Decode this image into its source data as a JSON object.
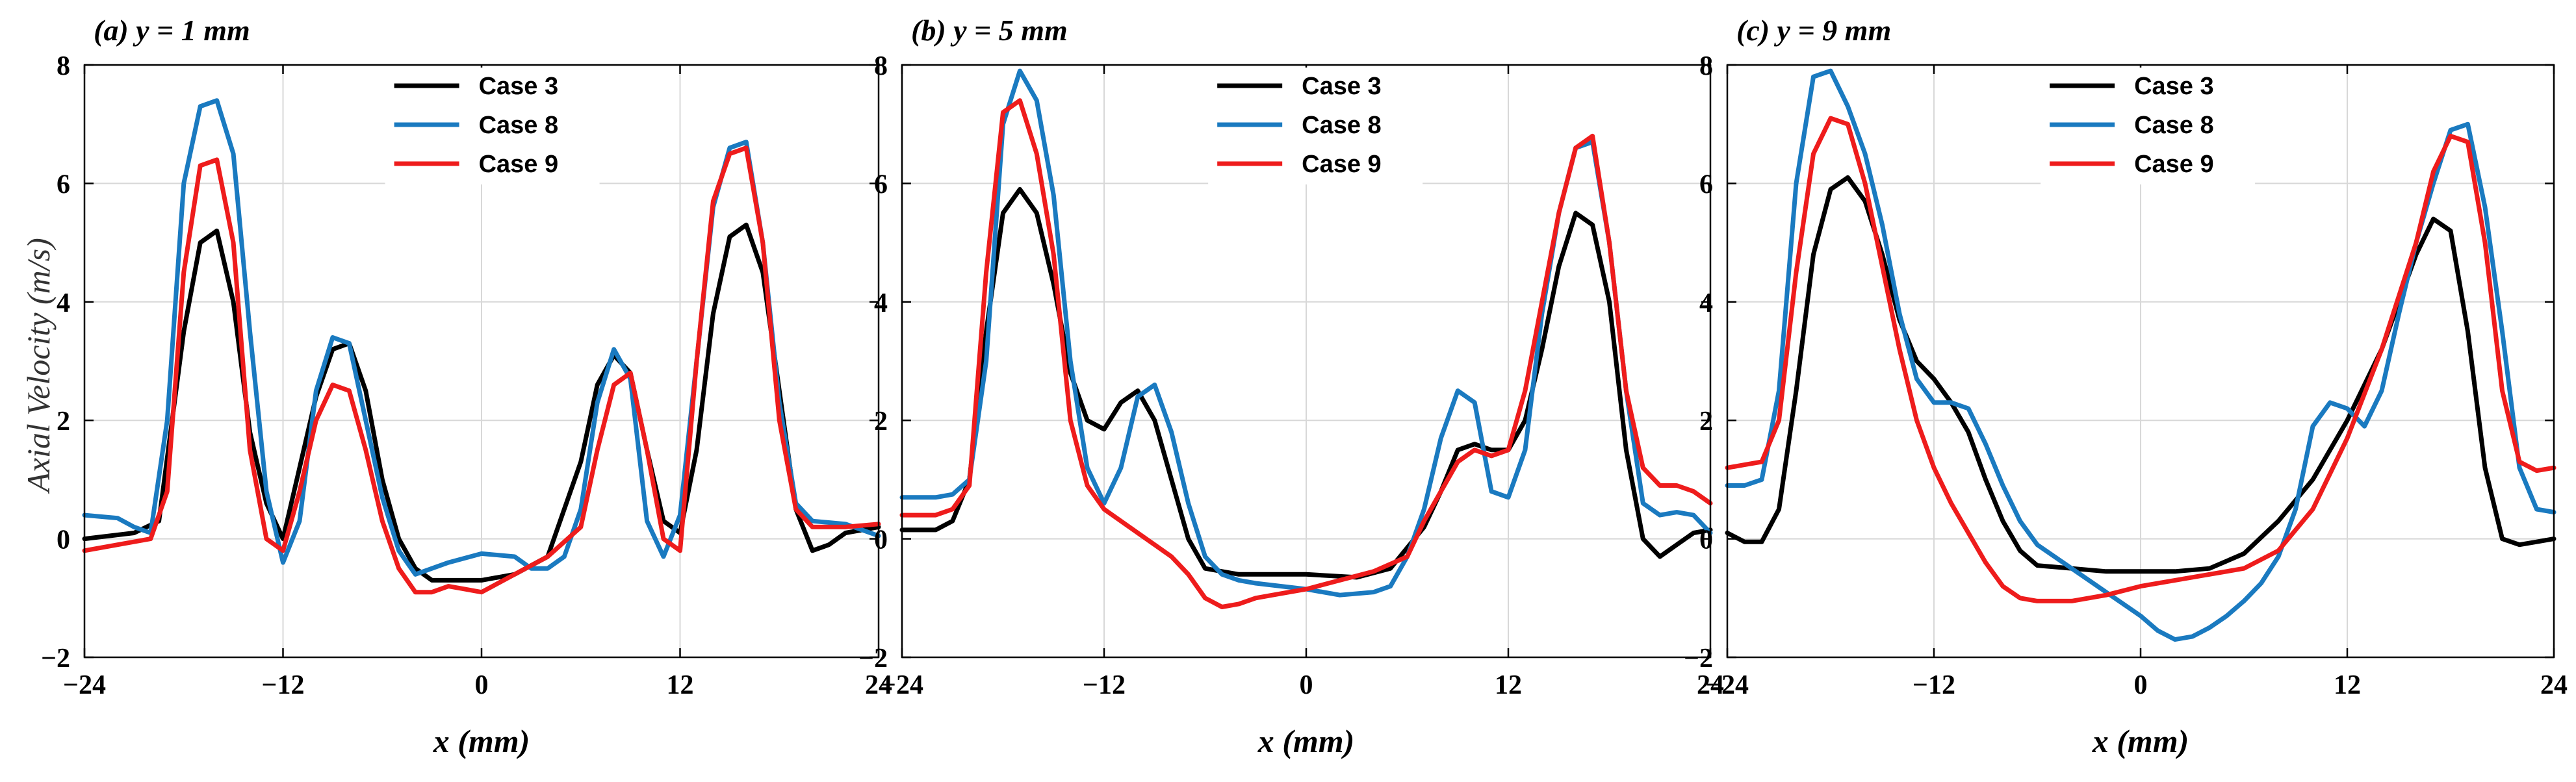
{
  "figure": {
    "ylabel": "Axial Velocity (m/s)",
    "xlabel": "x (mm)"
  },
  "chart_data": [
    {
      "type": "line",
      "title": "(a) y = 1 mm",
      "xlabel": "x (mm)",
      "ylabel": "Axial Velocity (m/s)",
      "xlim": [
        -24,
        24
      ],
      "ylim": [
        -2,
        8
      ],
      "xticks": [
        -24,
        -12,
        0,
        12,
        24
      ],
      "xtick_labels": [
        "−24",
        "−12",
        "0",
        "12",
        "24"
      ],
      "yticks": [
        -2,
        0,
        2,
        4,
        6,
        8
      ],
      "ytick_labels": [
        "−2",
        "0",
        "2",
        "4",
        "6",
        "8"
      ],
      "grid": true,
      "legend_position": "top-center",
      "series": [
        {
          "name": "Case 3",
          "color": "#000000",
          "x": [
            -24,
            -21,
            -19.5,
            -18,
            -17,
            -16,
            -15,
            -14,
            -13,
            -12,
            -11,
            -10,
            -9,
            -8,
            -7,
            -6,
            -5,
            -4,
            -3,
            -2,
            0,
            2,
            4,
            6,
            7,
            8,
            9,
            10,
            11,
            12,
            13,
            14,
            15,
            16,
            17,
            18,
            19,
            20,
            21,
            22,
            24
          ],
          "y": [
            0,
            0.1,
            0.3,
            3.5,
            5.0,
            5.2,
            4.0,
            1.8,
            0.6,
            0.0,
            1.2,
            2.4,
            3.2,
            3.3,
            2.5,
            1.0,
            0.0,
            -0.5,
            -0.7,
            -0.7,
            -0.7,
            -0.6,
            -0.3,
            1.3,
            2.6,
            3.1,
            2.8,
            1.5,
            0.3,
            0.1,
            1.5,
            3.8,
            5.1,
            5.3,
            4.5,
            2.5,
            0.5,
            -0.2,
            -0.1,
            0.1,
            0.2
          ]
        },
        {
          "name": "Case 8",
          "color": "#1a7ac0",
          "x": [
            -24,
            -22,
            -21,
            -20,
            -19,
            -18,
            -17,
            -16,
            -15,
            -14,
            -13,
            -12,
            -11,
            -10,
            -9,
            -8,
            -7,
            -6,
            -5,
            -4,
            -3,
            -2,
            0,
            2,
            3,
            4,
            5,
            6,
            7,
            8,
            9,
            10,
            11,
            12,
            13,
            14,
            15,
            16,
            17,
            18,
            19,
            20,
            22,
            24
          ],
          "y": [
            0.4,
            0.35,
            0.2,
            0.1,
            2.0,
            6.0,
            7.3,
            7.4,
            6.5,
            3.5,
            0.8,
            -0.4,
            0.3,
            2.5,
            3.4,
            3.3,
            2.0,
            0.7,
            -0.2,
            -0.6,
            -0.5,
            -0.4,
            -0.25,
            -0.3,
            -0.5,
            -0.5,
            -0.3,
            0.5,
            2.3,
            3.2,
            2.7,
            0.3,
            -0.3,
            0.4,
            3.0,
            5.6,
            6.6,
            6.7,
            5.0,
            2.3,
            0.6,
            0.3,
            0.25,
            0.05
          ]
        },
        {
          "name": "Case 9",
          "color": "#ee1c1c",
          "x": [
            -24,
            -22,
            -20,
            -19,
            -18,
            -17,
            -16,
            -15,
            -14,
            -13,
            -12,
            -11,
            -10,
            -9,
            -8,
            -7,
            -6,
            -5,
            -4,
            -3,
            -2,
            -1,
            0,
            2,
            4,
            6,
            7,
            8,
            9,
            10,
            11,
            12,
            13,
            14,
            15,
            16,
            17,
            18,
            19,
            20,
            22,
            24
          ],
          "y": [
            -0.2,
            -0.1,
            0.0,
            0.8,
            4.5,
            6.3,
            6.4,
            5.0,
            1.5,
            0.0,
            -0.2,
            0.8,
            2.0,
            2.6,
            2.5,
            1.5,
            0.3,
            -0.5,
            -0.9,
            -0.9,
            -0.8,
            -0.85,
            -0.9,
            -0.6,
            -0.3,
            0.2,
            1.5,
            2.6,
            2.8,
            1.5,
            0.0,
            -0.2,
            3.0,
            5.7,
            6.5,
            6.6,
            5.0,
            2.0,
            0.5,
            0.2,
            0.2,
            0.25
          ]
        }
      ]
    },
    {
      "type": "line",
      "title": "(b) y = 5 mm",
      "xlabel": "x (mm)",
      "ylabel": "Axial Velocity (m/s)",
      "xlim": [
        -24,
        24
      ],
      "ylim": [
        -2,
        8
      ],
      "xticks": [
        -24,
        -12,
        0,
        12,
        24
      ],
      "xtick_labels": [
        "−24",
        "−12",
        "0",
        "12",
        "24"
      ],
      "yticks": [
        -2,
        0,
        2,
        4,
        6,
        8
      ],
      "ytick_labels": [
        "−2",
        "0",
        "2",
        "4",
        "6",
        "8"
      ],
      "grid": true,
      "legend_position": "top-center",
      "series": [
        {
          "name": "Case 3",
          "color": "#000000",
          "x": [
            -24,
            -22,
            -21,
            -20,
            -19,
            -18,
            -17,
            -16,
            -15,
            -14,
            -13,
            -12,
            -11,
            -10,
            -9,
            -8,
            -7,
            -6,
            -5,
            -4,
            -3,
            0,
            3,
            5,
            7,
            8,
            9,
            10,
            11,
            12,
            13,
            14,
            15,
            16,
            17,
            18,
            19,
            20,
            21,
            22,
            23,
            24
          ],
          "y": [
            0.15,
            0.15,
            0.3,
            1.0,
            3.5,
            5.5,
            5.9,
            5.5,
            4.3,
            2.8,
            2.0,
            1.85,
            2.3,
            2.5,
            2.0,
            1.0,
            0.0,
            -0.5,
            -0.55,
            -0.6,
            -0.6,
            -0.6,
            -0.65,
            -0.5,
            0.2,
            0.8,
            1.5,
            1.6,
            1.5,
            1.5,
            2.0,
            3.2,
            4.6,
            5.5,
            5.3,
            4.0,
            1.5,
            0.0,
            -0.3,
            -0.1,
            0.1,
            0.15
          ]
        },
        {
          "name": "Case 8",
          "color": "#1a7ac0",
          "x": [
            -24,
            -22,
            -21,
            -20,
            -19,
            -18,
            -17,
            -16,
            -15,
            -14,
            -13,
            -12,
            -11,
            -10,
            -9,
            -8,
            -7,
            -6,
            -5,
            -4,
            -3,
            0,
            2,
            4,
            5,
            6,
            7,
            8,
            9,
            10,
            11,
            12,
            13,
            14,
            15,
            16,
            17,
            18,
            19,
            20,
            21,
            22,
            23,
            24
          ],
          "y": [
            0.7,
            0.7,
            0.75,
            1.0,
            3.0,
            7.0,
            7.9,
            7.4,
            5.8,
            3.0,
            1.2,
            0.6,
            1.2,
            2.4,
            2.6,
            1.8,
            0.6,
            -0.3,
            -0.6,
            -0.7,
            -0.75,
            -0.85,
            -0.95,
            -0.9,
            -0.8,
            -0.3,
            0.5,
            1.7,
            2.5,
            2.3,
            0.8,
            0.7,
            1.5,
            3.8,
            5.5,
            6.6,
            6.7,
            5.0,
            2.5,
            0.6,
            0.4,
            0.45,
            0.4,
            0.1
          ]
        },
        {
          "name": "Case 9",
          "color": "#ee1c1c",
          "x": [
            -24,
            -22,
            -21,
            -20,
            -19,
            -18,
            -17,
            -16,
            -15,
            -14,
            -13,
            -12,
            -11,
            -10,
            -9,
            -8,
            -7,
            -6,
            -5,
            -4,
            -3,
            -2,
            0,
            2,
            4,
            6,
            7,
            8,
            9,
            10,
            11,
            12,
            13,
            14,
            15,
            16,
            17,
            18,
            19,
            20,
            21,
            22,
            23,
            24
          ],
          "y": [
            0.4,
            0.4,
            0.5,
            0.9,
            4.5,
            7.2,
            7.4,
            6.5,
            4.8,
            2.0,
            0.9,
            0.5,
            0.3,
            0.1,
            -0.1,
            -0.3,
            -0.6,
            -1.0,
            -1.15,
            -1.1,
            -1.0,
            -0.95,
            -0.85,
            -0.7,
            -0.55,
            -0.3,
            0.3,
            0.8,
            1.3,
            1.5,
            1.4,
            1.5,
            2.5,
            4.0,
            5.5,
            6.6,
            6.8,
            5.0,
            2.5,
            1.2,
            0.9,
            0.9,
            0.8,
            0.6
          ]
        }
      ]
    },
    {
      "type": "line",
      "title": "(c) y = 9 mm",
      "xlabel": "x (mm)",
      "ylabel": "Axial Velocity (m/s)",
      "xlim": [
        -24,
        24
      ],
      "ylim": [
        -2,
        8
      ],
      "xticks": [
        -24,
        -12,
        0,
        12,
        24
      ],
      "xtick_labels": [
        "−24",
        "−12",
        "0",
        "12",
        "24"
      ],
      "yticks": [
        -2,
        0,
        2,
        4,
        6,
        8
      ],
      "ytick_labels": [
        "−2",
        "0",
        "2",
        "4",
        "6",
        "8"
      ],
      "grid": true,
      "legend_position": "top-center",
      "series": [
        {
          "name": "Case 3",
          "color": "#000000",
          "x": [
            -24,
            -23,
            -22,
            -21,
            -20,
            -19,
            -18,
            -17,
            -16,
            -15,
            -14,
            -13,
            -12,
            -11,
            -10,
            -9,
            -8,
            -7,
            -6,
            -4,
            -2,
            0,
            2,
            4,
            6,
            8,
            10,
            12,
            14,
            15,
            16,
            17,
            18,
            19,
            20,
            21,
            22,
            23,
            24
          ],
          "y": [
            0.1,
            -0.05,
            -0.05,
            0.5,
            2.5,
            4.8,
            5.9,
            6.1,
            5.7,
            4.8,
            3.7,
            3.0,
            2.7,
            2.3,
            1.8,
            1.0,
            0.3,
            -0.2,
            -0.45,
            -0.5,
            -0.55,
            -0.55,
            -0.55,
            -0.5,
            -0.25,
            0.3,
            1.0,
            2.0,
            3.2,
            4.0,
            4.8,
            5.4,
            5.2,
            3.5,
            1.2,
            0.0,
            -0.1,
            -0.05,
            0.0
          ]
        },
        {
          "name": "Case 8",
          "color": "#1a7ac0",
          "x": [
            -24,
            -23,
            -22,
            -21,
            -20,
            -19,
            -18,
            -17,
            -16,
            -15,
            -14,
            -13,
            -12,
            -11,
            -10,
            -9,
            -8,
            -7,
            -6,
            -5,
            -4,
            -2,
            0,
            1,
            2,
            3,
            4,
            5,
            6,
            7,
            8,
            9,
            10,
            11,
            12,
            13,
            14,
            15,
            16,
            17,
            18,
            19,
            20,
            21,
            22,
            23,
            24
          ],
          "y": [
            0.9,
            0.9,
            1.0,
            2.5,
            6.0,
            7.8,
            7.9,
            7.3,
            6.5,
            5.3,
            3.8,
            2.7,
            2.3,
            2.3,
            2.2,
            1.6,
            0.9,
            0.3,
            -0.1,
            -0.3,
            -0.5,
            -0.9,
            -1.3,
            -1.55,
            -1.7,
            -1.65,
            -1.5,
            -1.3,
            -1.05,
            -0.75,
            -0.3,
            0.5,
            1.9,
            2.3,
            2.2,
            1.9,
            2.5,
            3.8,
            5.0,
            6.0,
            6.9,
            7.0,
            5.6,
            3.5,
            1.2,
            0.5,
            0.45
          ]
        },
        {
          "name": "Case 9",
          "color": "#ee1c1c",
          "x": [
            -24,
            -23,
            -22,
            -21,
            -20,
            -19,
            -18,
            -17,
            -16,
            -15,
            -14,
            -13,
            -12,
            -11,
            -10,
            -9,
            -8,
            -7,
            -6,
            -4,
            -2,
            0,
            2,
            4,
            6,
            8,
            10,
            12,
            14,
            16,
            17,
            18,
            19,
            20,
            21,
            22,
            23,
            24
          ],
          "y": [
            1.2,
            1.25,
            1.3,
            2.0,
            4.5,
            6.5,
            7.1,
            7.0,
            6.0,
            4.6,
            3.2,
            2.0,
            1.2,
            0.6,
            0.1,
            -0.4,
            -0.8,
            -1.0,
            -1.05,
            -1.05,
            -0.95,
            -0.8,
            -0.7,
            -0.6,
            -0.5,
            -0.2,
            0.5,
            1.7,
            3.2,
            5.0,
            6.2,
            6.8,
            6.7,
            5.0,
            2.5,
            1.3,
            1.15,
            1.2
          ]
        }
      ]
    }
  ]
}
